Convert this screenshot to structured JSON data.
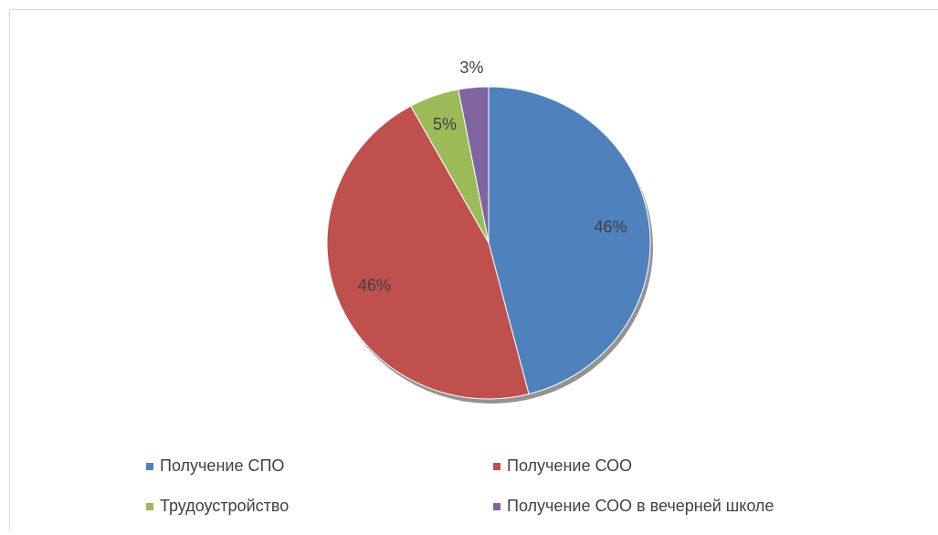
{
  "chart_data": {
    "type": "pie",
    "categories": [
      "Получение СПО",
      "Получение СОО",
      "Трудоустройство",
      "Получение СОО в вечерней школе"
    ],
    "values": [
      46,
      46,
      5,
      3
    ],
    "value_labels": [
      "46%",
      "46%",
      "5%",
      "3%"
    ],
    "colors": [
      "#4f81bd",
      "#c0504d",
      "#9bbb59",
      "#8064a2"
    ],
    "legend": "bottom"
  }
}
